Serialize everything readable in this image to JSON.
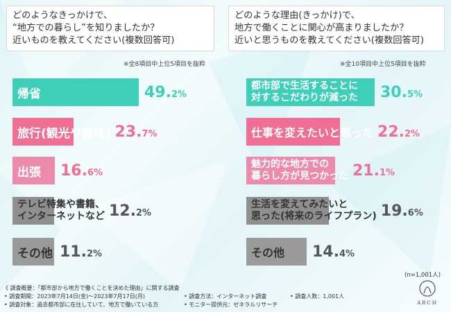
{
  "colors": {
    "teal": "#3dcfb8",
    "pink": "#ee6f93",
    "pink_light": "#eb8aaa",
    "gray": "#8f8f8f",
    "gray_light": "#9a9a9a"
  },
  "chart_data": [
    {
      "type": "bar",
      "orientation": "horizontal",
      "title_lines": [
        "どのようなきっかけで、",
        "“地方での暮らし”を知りましたか？",
        "近いものを教えてください(複数回答可)"
      ],
      "note": "※全8項目中上位5項目を抜粋",
      "unit": "%",
      "categories": [
        {
          "label_lines": [
            "帰省"
          ],
          "value": 49.2,
          "pct_main": "49.",
          "pct_dec": "2%",
          "color": "#3dcfb8"
        },
        {
          "label_lines": [
            "旅行(観光や趣味)"
          ],
          "value": 23.7,
          "pct_main": "23.",
          "pct_dec": "7%",
          "color": "#ee6f93"
        },
        {
          "label_lines": [
            "出張"
          ],
          "value": 16.6,
          "pct_main": "16.",
          "pct_dec": "6%",
          "color": "#eb8aaa"
        },
        {
          "label_lines": [
            "テレビ特集や書籍、",
            "インターネットなど"
          ],
          "value": 12.2,
          "pct_main": "12.",
          "pct_dec": "2%",
          "color": "#8f8f8f"
        },
        {
          "label_lines": [
            "その他"
          ],
          "value": 11.2,
          "pct_main": "11.",
          "pct_dec": "2%",
          "color": "#9a9a9a"
        }
      ]
    },
    {
      "type": "bar",
      "orientation": "horizontal",
      "title_lines": [
        "どのような理由(きっかけ)で、",
        "地方で働くことに関心が高まりましたか？",
        "近いと思うものを教えてください(複数回答可)"
      ],
      "note": "※全10項目中上位5項目を抜粋",
      "unit": "%",
      "categories": [
        {
          "label_lines": [
            "都市部で生活することに",
            "対するこだわりが減った"
          ],
          "value": 30.5,
          "pct_main": "30.",
          "pct_dec": "5%",
          "color": "#3dcfb8"
        },
        {
          "label_lines": [
            "仕事を変えたいと思った"
          ],
          "value": 22.2,
          "pct_main": "22.",
          "pct_dec": "2%",
          "color": "#ee6f93"
        },
        {
          "label_lines": [
            "魅力的な地方での",
            "暮らし方が見つかった"
          ],
          "value": 21.1,
          "pct_main": "21.",
          "pct_dec": "1%",
          "color": "#eb8aaa"
        },
        {
          "label_lines": [
            "生活を変えてみたいと",
            "思った(将来のライフプラン)"
          ],
          "value": 19.6,
          "pct_main": "19.",
          "pct_dec": "6%",
          "color": "#8f8f8f"
        },
        {
          "label_lines": [
            "その他"
          ],
          "value": 14.4,
          "pct_main": "14.",
          "pct_dec": "4%",
          "color": "#9a9a9a"
        }
      ]
    }
  ],
  "n_label": "(n=1,001人)",
  "footer": {
    "summary": "《 調査概要：「都市部から地方で働くことを決めた理由」に関する調査",
    "period": "• 調査期間：2023年7月14日(金)～2023年7月17日(月)",
    "method": "• 調査方法：インターネット調査",
    "count": "• 調査人数：1,001人",
    "target": "• 調査対象：過去都市部に在住していて、地方で働いている方",
    "provider": "• モニター提供元：ゼネラルリサーチ"
  },
  "logo": {
    "text": "ARCH"
  }
}
